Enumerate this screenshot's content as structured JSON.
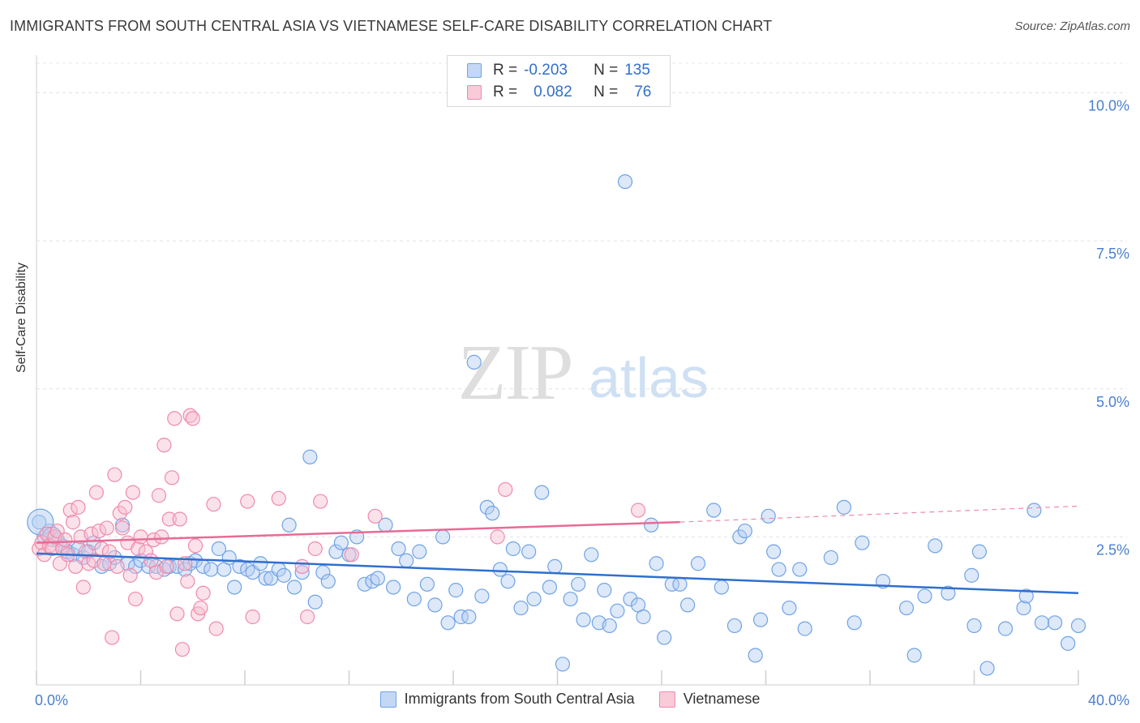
{
  "title": "IMMIGRANTS FROM SOUTH CENTRAL ASIA VS VIETNAMESE SELF-CARE DISABILITY CORRELATION CHART",
  "source": "Source: ZipAtlas.com",
  "watermark": {
    "zip": "ZIP",
    "atlas": "atlas"
  },
  "stats": [
    {
      "r_label": "R =",
      "r_value": "-0.203",
      "n_label": "N =",
      "n_value": "135",
      "color": "#6fa3e6"
    },
    {
      "r_label": "R =",
      "r_value": "0.082",
      "n_label": "N =",
      "n_value": "76",
      "color": "#f08aab"
    }
  ],
  "legend": [
    {
      "label": "Immigrants from South Central Asia",
      "color": "#6fa3e6"
    },
    {
      "label": "Vietnamese",
      "color": "#f08aab"
    }
  ],
  "chart_data": {
    "type": "scatter",
    "title": "IMMIGRANTS FROM SOUTH CENTRAL ASIA VS VIETNAMESE SELF-CARE DISABILITY CORRELATION CHART",
    "xlabel": "",
    "ylabel": "Self-Care Disability",
    "xlim": [
      0,
      40
    ],
    "ylim": [
      0,
      10.5
    ],
    "x_tick_labels": [
      "0.0%",
      "40.0%"
    ],
    "y_ticks": [
      2.5,
      5.0,
      7.5,
      10.0
    ],
    "y_tick_labels": [
      "2.5%",
      "5.0%",
      "7.5%",
      "10.0%"
    ],
    "grid": true,
    "legend_position": "bottom",
    "series": [
      {
        "name": "Immigrants from South Central Asia",
        "color": "#6fa3e6",
        "trend": {
          "x0": 0,
          "y0": 2.22,
          "x1": 40,
          "y1": 1.55
        },
        "points": [
          [
            0.1,
            2.75
          ],
          [
            0.3,
            2.5
          ],
          [
            0.5,
            2.6
          ],
          [
            0.8,
            2.45
          ],
          [
            1.0,
            2.35
          ],
          [
            1.2,
            2.25
          ],
          [
            1.4,
            2.2
          ],
          [
            1.6,
            2.3
          ],
          [
            1.8,
            2.15
          ],
          [
            2.0,
            2.25
          ],
          [
            2.2,
            2.4
          ],
          [
            2.5,
            2.0
          ],
          [
            2.8,
            2.05
          ],
          [
            3.0,
            2.15
          ],
          [
            3.3,
            2.7
          ],
          [
            3.5,
            2.05
          ],
          [
            3.8,
            2.0
          ],
          [
            4.0,
            2.1
          ],
          [
            4.3,
            2.0
          ],
          [
            4.6,
            2.0
          ],
          [
            4.9,
            1.95
          ],
          [
            5.1,
            2.0
          ],
          [
            5.4,
            2.0
          ],
          [
            5.7,
            1.95
          ],
          [
            5.9,
            2.05
          ],
          [
            6.1,
            2.1
          ],
          [
            6.4,
            2.0
          ],
          [
            6.7,
            1.95
          ],
          [
            7.0,
            2.3
          ],
          [
            7.2,
            1.95
          ],
          [
            7.4,
            2.15
          ],
          [
            7.6,
            1.65
          ],
          [
            7.8,
            2.0
          ],
          [
            8.1,
            1.95
          ],
          [
            8.3,
            1.9
          ],
          [
            8.6,
            2.05
          ],
          [
            8.8,
            1.8
          ],
          [
            9.0,
            1.8
          ],
          [
            9.3,
            1.95
          ],
          [
            9.5,
            1.85
          ],
          [
            9.7,
            2.7
          ],
          [
            9.9,
            1.65
          ],
          [
            10.2,
            1.9
          ],
          [
            10.5,
            3.85
          ],
          [
            10.7,
            1.4
          ],
          [
            11.0,
            1.9
          ],
          [
            11.2,
            1.75
          ],
          [
            11.5,
            2.25
          ],
          [
            11.7,
            2.4
          ],
          [
            12.0,
            2.2
          ],
          [
            12.3,
            2.5
          ],
          [
            12.6,
            1.7
          ],
          [
            12.9,
            1.75
          ],
          [
            13.1,
            1.8
          ],
          [
            13.4,
            2.7
          ],
          [
            13.7,
            1.65
          ],
          [
            13.9,
            2.3
          ],
          [
            14.2,
            2.1
          ],
          [
            14.5,
            1.45
          ],
          [
            14.7,
            2.25
          ],
          [
            15.0,
            1.7
          ],
          [
            15.3,
            1.35
          ],
          [
            15.6,
            2.5
          ],
          [
            15.8,
            1.05
          ],
          [
            16.1,
            1.6
          ],
          [
            16.3,
            1.15
          ],
          [
            16.6,
            1.15
          ],
          [
            16.8,
            5.45
          ],
          [
            17.1,
            1.5
          ],
          [
            17.3,
            3.0
          ],
          [
            17.5,
            2.9
          ],
          [
            17.8,
            1.95
          ],
          [
            18.1,
            1.75
          ],
          [
            18.3,
            2.3
          ],
          [
            18.6,
            1.3
          ],
          [
            18.9,
            2.25
          ],
          [
            19.1,
            1.45
          ],
          [
            19.4,
            3.25
          ],
          [
            19.7,
            1.65
          ],
          [
            19.9,
            2.0
          ],
          [
            20.2,
            0.35
          ],
          [
            20.5,
            1.45
          ],
          [
            20.8,
            1.7
          ],
          [
            21.0,
            1.1
          ],
          [
            21.3,
            2.2
          ],
          [
            21.6,
            1.05
          ],
          [
            21.8,
            1.6
          ],
          [
            22.0,
            1.0
          ],
          [
            22.3,
            1.25
          ],
          [
            22.6,
            8.5
          ],
          [
            22.8,
            1.45
          ],
          [
            23.1,
            1.35
          ],
          [
            23.3,
            1.15
          ],
          [
            23.6,
            2.7
          ],
          [
            23.8,
            2.05
          ],
          [
            24.1,
            0.8
          ],
          [
            24.4,
            1.7
          ],
          [
            24.7,
            1.7
          ],
          [
            25.0,
            1.35
          ],
          [
            25.4,
            2.05
          ],
          [
            26.0,
            2.95
          ],
          [
            26.3,
            1.65
          ],
          [
            26.8,
            1.0
          ],
          [
            27.0,
            2.5
          ],
          [
            27.2,
            2.6
          ],
          [
            27.6,
            0.5
          ],
          [
            27.8,
            1.1
          ],
          [
            28.1,
            2.85
          ],
          [
            28.3,
            2.25
          ],
          [
            28.5,
            1.95
          ],
          [
            28.9,
            1.3
          ],
          [
            29.3,
            1.95
          ],
          [
            29.5,
            0.95
          ],
          [
            30.5,
            2.15
          ],
          [
            31.0,
            3.0
          ],
          [
            31.4,
            1.05
          ],
          [
            31.7,
            2.4
          ],
          [
            32.5,
            1.75
          ],
          [
            33.4,
            1.3
          ],
          [
            33.7,
            0.5
          ],
          [
            34.1,
            1.5
          ],
          [
            35.0,
            1.55
          ],
          [
            35.9,
            1.85
          ],
          [
            36.0,
            1.0
          ],
          [
            36.5,
            0.28
          ],
          [
            37.2,
            0.95
          ],
          [
            37.9,
            1.3
          ],
          [
            38.0,
            1.5
          ],
          [
            38.3,
            2.95
          ],
          [
            38.6,
            1.05
          ],
          [
            39.1,
            1.05
          ],
          [
            40.0,
            1.0
          ],
          [
            34.5,
            2.35
          ],
          [
            36.2,
            2.25
          ],
          [
            39.6,
            0.7
          ]
        ]
      },
      {
        "name": "Vietnamese",
        "color": "#f08aab",
        "trend": {
          "x0": 0,
          "y0": 2.4,
          "x1": 24.7,
          "y1": 2.75
        },
        "trend_dashed_to": {
          "x": 40,
          "y": 3.02
        },
        "points": [
          [
            0.1,
            2.3
          ],
          [
            0.2,
            2.4
          ],
          [
            0.3,
            2.2
          ],
          [
            0.4,
            2.55
          ],
          [
            0.5,
            2.35
          ],
          [
            0.6,
            2.3
          ],
          [
            0.7,
            2.5
          ],
          [
            0.8,
            2.6
          ],
          [
            0.9,
            2.05
          ],
          [
            1.0,
            2.3
          ],
          [
            1.1,
            2.45
          ],
          [
            1.2,
            2.2
          ],
          [
            1.3,
            2.95
          ],
          [
            1.4,
            2.75
          ],
          [
            1.5,
            2.0
          ],
          [
            1.6,
            3.0
          ],
          [
            1.7,
            2.5
          ],
          [
            1.8,
            1.65
          ],
          [
            1.9,
            2.25
          ],
          [
            2.0,
            2.05
          ],
          [
            2.1,
            2.55
          ],
          [
            2.2,
            2.1
          ],
          [
            2.3,
            3.25
          ],
          [
            2.4,
            2.6
          ],
          [
            2.5,
            2.3
          ],
          [
            2.6,
            2.05
          ],
          [
            2.7,
            2.65
          ],
          [
            2.8,
            2.25
          ],
          [
            2.9,
            0.8
          ],
          [
            3.0,
            3.55
          ],
          [
            3.1,
            2.0
          ],
          [
            3.2,
            2.9
          ],
          [
            3.3,
            2.65
          ],
          [
            3.4,
            3.0
          ],
          [
            3.5,
            2.4
          ],
          [
            3.6,
            1.85
          ],
          [
            3.7,
            3.25
          ],
          [
            3.8,
            1.45
          ],
          [
            3.9,
            2.3
          ],
          [
            4.0,
            2.5
          ],
          [
            4.2,
            2.25
          ],
          [
            4.4,
            2.1
          ],
          [
            4.5,
            2.45
          ],
          [
            4.6,
            1.9
          ],
          [
            4.7,
            3.2
          ],
          [
            4.8,
            2.5
          ],
          [
            4.9,
            4.05
          ],
          [
            5.0,
            2.0
          ],
          [
            5.1,
            2.8
          ],
          [
            5.2,
            3.5
          ],
          [
            5.3,
            4.5
          ],
          [
            5.4,
            1.2
          ],
          [
            5.5,
            2.8
          ],
          [
            5.6,
            0.6
          ],
          [
            5.7,
            2.05
          ],
          [
            5.8,
            1.75
          ],
          [
            5.9,
            4.55
          ],
          [
            6.0,
            4.5
          ],
          [
            6.1,
            2.35
          ],
          [
            6.2,
            1.2
          ],
          [
            6.3,
            1.3
          ],
          [
            6.4,
            1.55
          ],
          [
            6.8,
            3.05
          ],
          [
            6.9,
            0.95
          ],
          [
            8.1,
            3.1
          ],
          [
            8.3,
            1.15
          ],
          [
            9.3,
            3.15
          ],
          [
            10.2,
            2.0
          ],
          [
            10.4,
            1.15
          ],
          [
            10.7,
            2.3
          ],
          [
            10.9,
            3.1
          ],
          [
            12.1,
            2.2
          ],
          [
            13.0,
            2.85
          ],
          [
            17.7,
            2.5
          ],
          [
            18.0,
            3.3
          ],
          [
            23.1,
            2.95
          ]
        ]
      }
    ]
  }
}
